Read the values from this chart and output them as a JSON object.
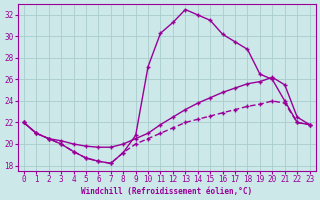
{
  "xlabel": "Windchill (Refroidissement éolien,°C)",
  "line_color": "#990099",
  "bg_color": "#cce8e8",
  "grid_color": "#aacccc",
  "xlim": [
    -0.5,
    23.5
  ],
  "ylim": [
    17.5,
    33.0
  ],
  "xticks": [
    0,
    1,
    2,
    3,
    4,
    5,
    6,
    7,
    8,
    9,
    10,
    11,
    12,
    13,
    14,
    15,
    16,
    17,
    18,
    19,
    20,
    21,
    22,
    23
  ],
  "yticks": [
    18,
    20,
    22,
    24,
    26,
    28,
    30,
    32
  ],
  "series1_x": [
    0,
    1,
    2,
    3,
    4,
    5,
    6,
    7,
    8,
    9,
    10,
    11,
    12,
    13,
    14,
    15,
    16,
    17,
    18,
    19,
    20,
    21,
    22,
    23
  ],
  "series1_y": [
    22.0,
    21.0,
    20.5,
    20.0,
    19.3,
    18.7,
    18.4,
    18.2,
    19.2,
    20.8,
    27.2,
    30.3,
    31.3,
    32.5,
    32.0,
    31.5,
    30.2,
    29.5,
    28.8,
    26.5,
    26.0,
    24.0,
    22.0,
    21.8
  ],
  "series2_x": [
    0,
    1,
    2,
    3,
    4,
    5,
    6,
    7,
    8,
    9,
    10,
    11,
    12,
    13,
    14,
    15,
    16,
    17,
    18,
    19,
    20,
    21,
    22,
    23
  ],
  "series2_y": [
    22.0,
    21.0,
    20.5,
    20.3,
    20.0,
    19.8,
    19.7,
    19.7,
    20.0,
    20.5,
    21.0,
    21.8,
    22.5,
    23.2,
    23.8,
    24.3,
    24.8,
    25.2,
    25.6,
    25.8,
    26.2,
    25.5,
    22.5,
    21.8
  ],
  "series3_x": [
    0,
    1,
    2,
    3,
    4,
    5,
    6,
    7,
    8,
    9,
    10,
    11,
    12,
    13,
    14,
    15,
    16,
    17,
    18,
    19,
    20,
    21,
    22,
    23
  ],
  "series3_y": [
    22.0,
    21.0,
    20.5,
    20.0,
    19.3,
    18.7,
    18.4,
    18.2,
    19.2,
    20.0,
    20.5,
    21.0,
    21.5,
    22.0,
    22.3,
    22.6,
    22.9,
    23.2,
    23.5,
    23.7,
    24.0,
    23.8,
    22.0,
    21.8
  ]
}
